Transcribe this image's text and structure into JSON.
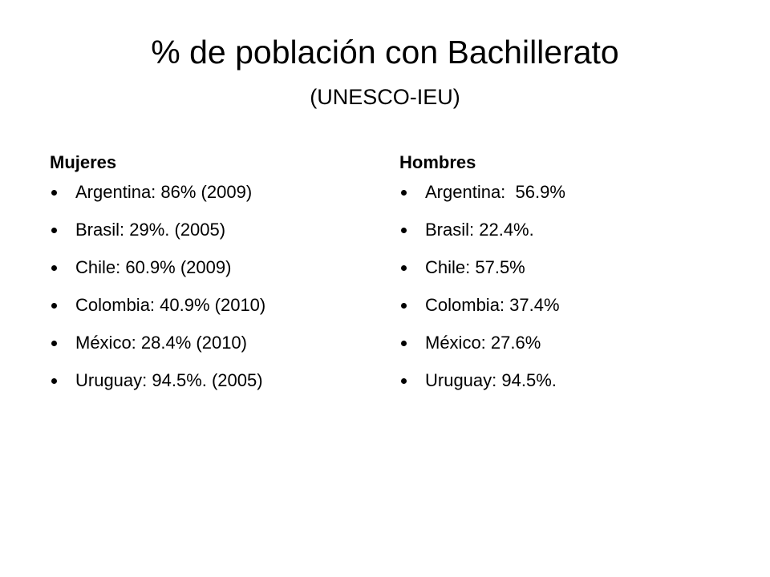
{
  "header": {
    "title": "% de población con Bachillerato",
    "subtitle": "(UNESCO-IEU)"
  },
  "columns": [
    {
      "heading": "Mujeres",
      "items": [
        "Argentina: 86% (2009)",
        "Brasil: 29%. (2005)",
        "Chile: 60.9% (2009)",
        "Colombia: 40.9% (2010)",
        "México: 28.4% (2010)",
        "Uruguay: 94.5%. (2005)"
      ]
    },
    {
      "heading": "Hombres",
      "items": [
        "Argentina:  56.9%",
        "Brasil: 22.4%.",
        "Chile: 57.5%",
        "Colombia: 37.4%",
        "México: 27.6%",
        "Uruguay: 94.5%."
      ]
    }
  ]
}
